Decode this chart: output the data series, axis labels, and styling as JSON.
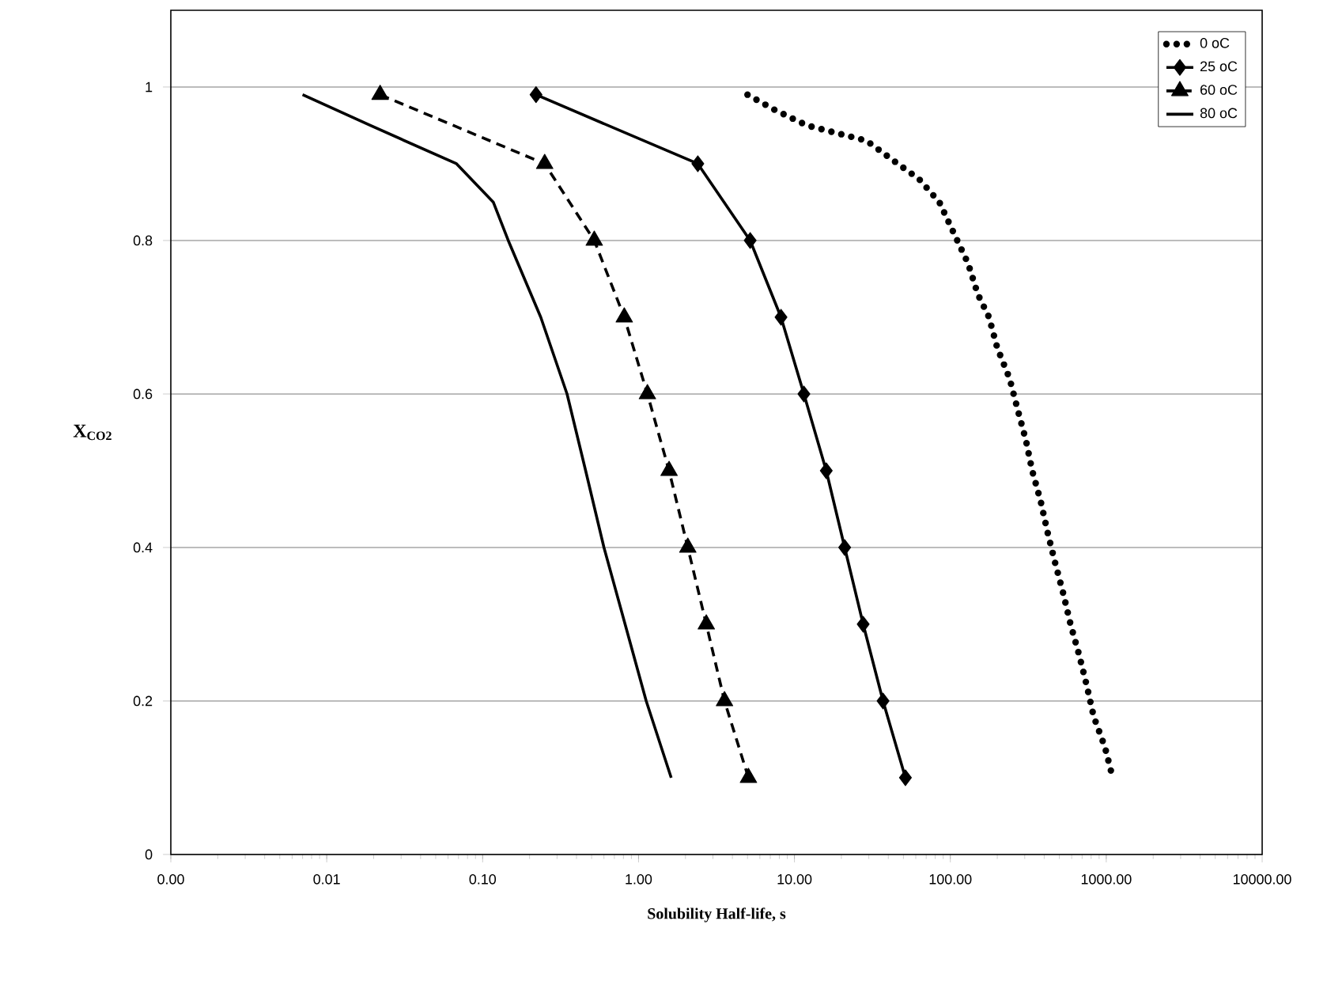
{
  "chart_data": {
    "type": "line",
    "xlabel": "Solubility Half-life, s",
    "ylabel": "X$_{CO2}$",
    "log": "x",
    "grid": "y",
    "legend": "top right",
    "xlim": [
      0.001,
      10000
    ],
    "ylim": [
      0,
      1.1
    ],
    "xticks": [
      {
        "value": 0.001,
        "label": "0.00"
      },
      {
        "value": 0.01,
        "label": "0.01"
      },
      {
        "value": 0.1,
        "label": "0.10"
      },
      {
        "value": 1,
        "label": "1.00"
      },
      {
        "value": 10,
        "label": "10.00"
      },
      {
        "value": 100,
        "label": "100.00"
      },
      {
        "value": 1000,
        "label": "1000.00"
      },
      {
        "value": 10000,
        "label": "10000.00"
      }
    ],
    "yticks": [
      0,
      0.2,
      0.4,
      0.6,
      0.8,
      1
    ],
    "series": [
      {
        "name": "0 oC",
        "color": "#000000",
        "marker": "none",
        "line_style": "dotted",
        "x": [
          5,
          7.5,
          12,
          29,
          46,
          63,
          85,
          105,
          130,
          150,
          177,
          200,
          240,
          270,
          305,
          335,
          380,
          420,
          470,
          530,
          590,
          670,
          750,
          830,
          980,
          1100
        ],
        "values": [
          0.99,
          0.97,
          0.95,
          0.93,
          0.9,
          0.88,
          0.85,
          0.81,
          0.77,
          0.73,
          0.7,
          0.66,
          0.62,
          0.58,
          0.54,
          0.5,
          0.46,
          0.42,
          0.38,
          0.34,
          0.3,
          0.26,
          0.22,
          0.18,
          0.14,
          0.1
        ]
      },
      {
        "name": "25 oC",
        "color": "#000000",
        "marker": "diamond",
        "line_style": "solid",
        "x": [
          0.22,
          2.4,
          5.2,
          8.2,
          11.5,
          16,
          21,
          27.6,
          37,
          51.5
        ],
        "values": [
          0.99,
          0.9,
          0.8,
          0.7,
          0.6,
          0.5,
          0.4,
          0.3,
          0.2,
          0.1
        ]
      },
      {
        "name": "60 oC",
        "color": "#000000",
        "marker": "triangle",
        "line_style": "dashed",
        "x": [
          0.022,
          0.25,
          0.52,
          0.81,
          1.14,
          1.57,
          2.07,
          2.72,
          3.56,
          5.07
        ],
        "values": [
          0.99,
          0.9,
          0.8,
          0.7,
          0.6,
          0.5,
          0.4,
          0.3,
          0.2,
          0.1
        ]
      },
      {
        "name": "80 oC",
        "color": "#000000",
        "marker": "none",
        "line_style": "solid",
        "x": [
          0.007,
          0.019,
          0.068,
          0.117,
          0.146,
          0.236,
          0.348,
          0.458,
          0.6,
          0.82,
          1.12,
          1.62
        ],
        "values": [
          0.99,
          0.95,
          0.9,
          0.85,
          0.8,
          0.7,
          0.6,
          0.5,
          0.4,
          0.3,
          0.2,
          0.1
        ]
      }
    ]
  }
}
